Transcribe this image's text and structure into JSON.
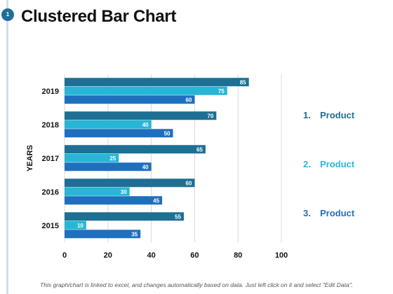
{
  "slide": {
    "badge": "1",
    "title": "Clustered Bar Chart",
    "footer": "This graph/chart is linked to excel, and changes automatically based on data. Just left click on it and select \"Edit Data\"."
  },
  "legend": [
    {
      "num": "1.",
      "label": "Product",
      "color": "#1d6f94"
    },
    {
      "num": "2.",
      "label": "Product",
      "color": "#27b6d6"
    },
    {
      "num": "3.",
      "label": "Product",
      "color": "#1f6fbf"
    }
  ],
  "chart_data": {
    "type": "bar",
    "orientation": "horizontal",
    "ylabel": "YEARS",
    "xlim": [
      0,
      100
    ],
    "xticks": [
      0,
      20,
      40,
      60,
      80,
      100
    ],
    "categories": [
      "2019",
      "2018",
      "2017",
      "2016",
      "2015"
    ],
    "series": [
      {
        "values": [
          85,
          70,
          65,
          60,
          55
        ],
        "color": "#1d6f94"
      },
      {
        "values": [
          75,
          40,
          25,
          30,
          10
        ],
        "color": "#27b6d6"
      },
      {
        "values": [
          60,
          50,
          40,
          45,
          35
        ],
        "color": "#1f6fbf"
      }
    ],
    "gridlines": true,
    "legend_position": "right"
  }
}
